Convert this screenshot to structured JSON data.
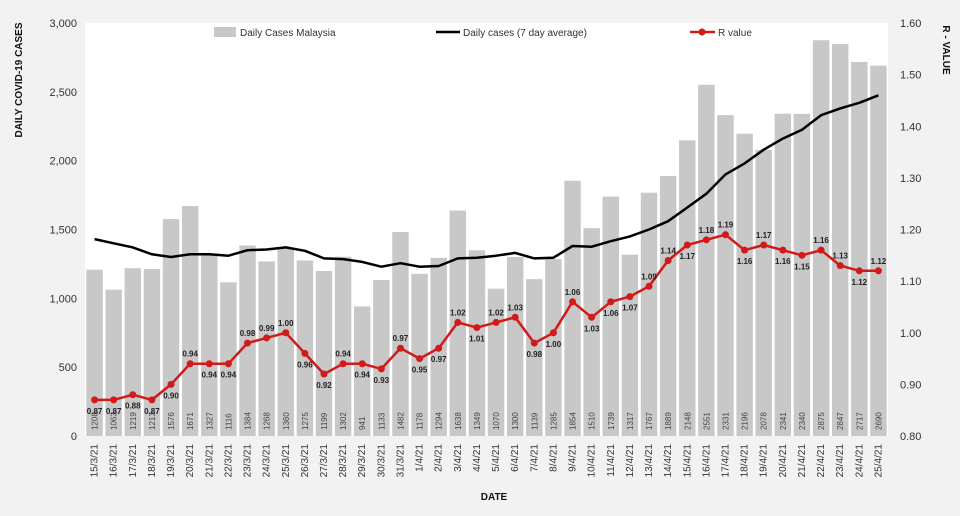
{
  "chart_data": {
    "type": "bar+line",
    "title": "",
    "xlabel": "DATE",
    "ylabel": "DAILY COVID-19 CASES",
    "y2label": "R - VALUE",
    "ylim": [
      0,
      3000
    ],
    "yticks": [
      "0",
      "500",
      "1,000",
      "1,500",
      "2,000",
      "2,500",
      "3,000"
    ],
    "ytick_values": [
      0,
      500,
      1000,
      1500,
      2000,
      2500,
      3000
    ],
    "y2lim": [
      0.8,
      1.6
    ],
    "y2ticks": [
      "0.80",
      "0.90",
      "1.00",
      "1.10",
      "1.20",
      "1.30",
      "1.40",
      "1.50",
      "1.60"
    ],
    "y2tick_values": [
      0.8,
      0.9,
      1.0,
      1.1,
      1.2,
      1.3,
      1.4,
      1.5,
      1.6
    ],
    "grid": false,
    "legend_position": "top",
    "categories": [
      "15/3/21",
      "16/3/21",
      "17/3/21",
      "18/3/21",
      "19/3/21",
      "20/3/21",
      "21/3/21",
      "22/3/21",
      "23/3/21",
      "24/3/21",
      "25/3/21",
      "26/3/21",
      "27/3/21",
      "28/3/21",
      "29/3/21",
      "30/3/21",
      "31/3/21",
      "1/4/21",
      "2/4/21",
      "3/4/21",
      "4/4/21",
      "5/4/21",
      "6/4/21",
      "7/4/21",
      "8/4/21",
      "9/4/21",
      "10/4/21",
      "11/4/21",
      "12/4/21",
      "13/4/21",
      "14/4/21",
      "15/4/21",
      "16/4/21",
      "17/4/21",
      "18/4/21",
      "19/4/21",
      "20/4/21",
      "21/4/21",
      "22/4/21",
      "23/4/21",
      "24/4/21",
      "25/4/21"
    ],
    "series": [
      {
        "name": "Daily Cases Malaysia",
        "type": "bar",
        "axis": "left",
        "color": "#c8c8c8",
        "values": [
          1208,
          1063,
          1219,
          1213,
          1576,
          1671,
          1327,
          1116,
          1384,
          1268,
          1360,
          1275,
          1199,
          1302,
          941,
          1133,
          1482,
          1178,
          1294,
          1638,
          1349,
          1070,
          1300,
          1139,
          1285,
          1854,
          1510,
          1739,
          1317,
          1767,
          1889,
          2148,
          2551,
          2331,
          2196,
          2078,
          2341,
          2340,
          2875,
          2847,
          2717,
          2690
        ],
        "labels": [
          "1208",
          "1063",
          "1219",
          "1213",
          "1576",
          "1671",
          "1327",
          "1116",
          "1384",
          "1268",
          "1360",
          "1275",
          "1199",
          "1302",
          "941",
          "1133",
          "1482",
          "1178",
          "1294",
          "1638",
          "1349",
          "1070",
          "1300",
          "1139",
          "1285",
          "1854",
          "1510",
          "1739",
          "1317",
          "1767",
          "1889",
          "2148",
          "2551",
          "2331",
          "2196",
          "2078",
          "2341",
          "2340",
          "2875",
          "2847",
          "2717",
          "2690"
        ]
      },
      {
        "name": "Daily cases (7 day average)",
        "type": "line",
        "axis": "left",
        "color": "#000000",
        "values": [
          1430,
          1400,
          1370,
          1320,
          1300,
          1320,
          1320,
          1310,
          1350,
          1355,
          1370,
          1345,
          1290,
          1285,
          1265,
          1230,
          1255,
          1230,
          1235,
          1290,
          1295,
          1310,
          1330,
          1290,
          1295,
          1380,
          1375,
          1415,
          1450,
          1500,
          1560,
          1660,
          1760,
          1900,
          1980,
          2080,
          2160,
          2225,
          2330,
          2380,
          2420,
          2475
        ]
      },
      {
        "name": "R value",
        "type": "line",
        "axis": "right",
        "color": "#d11a1a",
        "values": [
          0.87,
          0.87,
          0.88,
          0.87,
          0.9,
          0.94,
          0.94,
          0.94,
          0.98,
          0.99,
          1.0,
          0.96,
          0.92,
          0.94,
          0.94,
          0.93,
          0.97,
          0.95,
          0.97,
          1.02,
          1.01,
          1.02,
          1.03,
          0.98,
          1.0,
          1.06,
          1.03,
          1.06,
          1.07,
          1.09,
          1.14,
          1.17,
          1.18,
          1.19,
          1.16,
          1.17,
          1.16,
          1.15,
          1.16,
          1.13,
          1.12,
          1.12
        ],
        "labels": [
          "0.87",
          "0.87",
          "0.88",
          "0.87",
          "0.90",
          "0.94",
          "0.94",
          "0.94",
          "0.98",
          "0.99",
          "1.00",
          "0.96",
          "0.92",
          "0.94",
          "0.94",
          "0.93",
          "0.97",
          "0.95",
          "0.97",
          "1.02",
          "1.01",
          "1.02",
          "1.03",
          "0.98",
          "1.00",
          "1.06",
          "1.03",
          "1.06",
          "1.07",
          "1.09",
          "1.14",
          "1.17",
          "1.18",
          "1.19",
          "1.16",
          "1.17",
          "1.16",
          "1.15",
          "1.16",
          "1.13",
          "1.12",
          "1.12"
        ],
        "label_side": [
          "below",
          "below",
          "below",
          "below",
          "below",
          "above",
          "below",
          "below",
          "above",
          "above",
          "above",
          "below",
          "below",
          "above",
          "below",
          "below",
          "above",
          "below",
          "below",
          "above",
          "below",
          "above",
          "above",
          "below",
          "below",
          "above",
          "below",
          "below",
          "below",
          "above",
          "above",
          "below",
          "above",
          "above",
          "below",
          "above",
          "below",
          "below",
          "above",
          "above",
          "below",
          "above"
        ]
      }
    ]
  }
}
